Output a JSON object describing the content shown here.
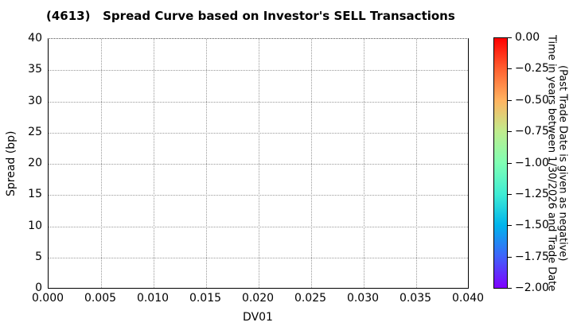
{
  "chart_data": {
    "type": "scatter",
    "title": "(4613)   Spread Curve based on Investor's SELL Transactions",
    "xlabel": "DV01",
    "ylabel": "Spread (bp)",
    "xlim": [
      0.0,
      0.04
    ],
    "ylim": [
      0,
      40
    ],
    "x_ticks": [
      "0.000",
      "0.005",
      "0.010",
      "0.015",
      "0.020",
      "0.025",
      "0.030",
      "0.035",
      "0.040"
    ],
    "y_ticks": [
      "0",
      "5",
      "10",
      "15",
      "20",
      "25",
      "30",
      "35",
      "40"
    ],
    "grid": true,
    "gridline_style": "dotted",
    "legend": "none",
    "series": [],
    "colorbar": {
      "label_line1": "Time in years between 1/30/2026 and Trade Date",
      "label_line2": "(Past Trade Date is given as negative)",
      "ticks": [
        "0.00",
        "−0.25",
        "−0.50",
        "−0.75",
        "−1.00",
        "−1.25",
        "−1.50",
        "−1.75",
        "−2.00"
      ],
      "value_range": [
        0.0,
        -2.0
      ],
      "colormap": "rainbow",
      "gradient_stops_top_to_bottom": [
        "#ff0000",
        "#ff6231",
        "#ffb461",
        "#bfec8e",
        "#80ffb4",
        "#40ecd4",
        "#00b4ec",
        "#4062fa",
        "#8000ff"
      ]
    },
    "colors": {
      "text": "#000000",
      "gridline": "#999999",
      "spine": "#000000",
      "background": "#ffffff"
    }
  }
}
